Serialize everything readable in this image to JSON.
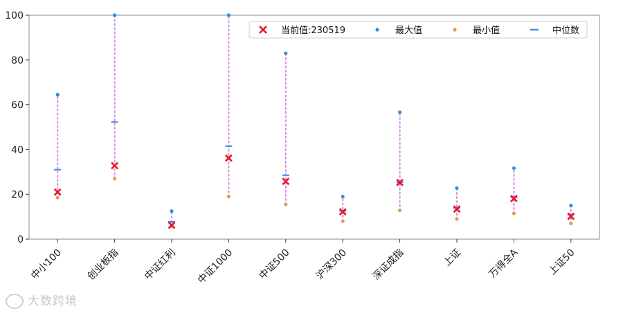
{
  "chart_data": {
    "type": "scatter",
    "categories": [
      "中小100",
      "创业板指",
      "中证红利",
      "中证1000",
      "中证500",
      "沪深300",
      "深证成指",
      "上证",
      "万得全A",
      "上证50"
    ],
    "series": [
      {
        "name": "当前值:230519",
        "values": [
          21,
          32.8,
          6.2,
          36.2,
          25.8,
          12.2,
          25.3,
          13.4,
          18.1,
          10.2
        ]
      },
      {
        "name": "最大值",
        "values": [
          64.5,
          100,
          12.5,
          100,
          83,
          19,
          56.7,
          22.8,
          31.7,
          15
        ]
      },
      {
        "name": "最小值",
        "values": [
          18.5,
          27,
          5.8,
          19,
          15.5,
          8,
          12.8,
          9,
          11.5,
          7
        ]
      },
      {
        "name": "中位数",
        "values": [
          31,
          52.3,
          7.7,
          41.5,
          28.5,
          12.6,
          25.4,
          14,
          18.7,
          11
        ]
      }
    ],
    "ylim": [
      0,
      100
    ],
    "yticks": [
      0,
      20,
      40,
      60,
      80,
      100
    ],
    "legend": "top-right",
    "colors": {
      "current": "#e8152a",
      "max": "#2f8fe0",
      "min": "#d9a04c",
      "median": "#3f8fe6",
      "range_line": "#d993df",
      "axis": "#888888"
    }
  },
  "watermark": {
    "text": "大数跨境"
  }
}
